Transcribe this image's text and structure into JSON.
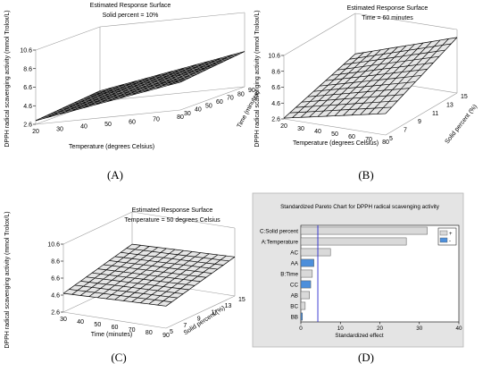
{
  "colors": {
    "surface_line": "#000000",
    "surface_fill": "#e6e6e6",
    "box_line": "#9a9a9a",
    "pareto_bg": "#e4e4e4",
    "bar_positive": "#d9d9d9",
    "bar_negative": "#4d8fdb",
    "ref_line": "#2b2bd0"
  },
  "chart_data": [
    {
      "type": "surface",
      "panel_label": "(A)",
      "title": "Estimated Response Surface",
      "subtitle": "Solid percent = 10%",
      "xlabel": "Temperature (degrees Celsius)",
      "ylabel": "Time (minutes)",
      "zlabel": "DPPH radical scavenging activity  (mmol Trolox/L)",
      "x_ticks": [
        "20",
        "30",
        "40",
        "50",
        "60",
        "70",
        "80"
      ],
      "y_ticks": [
        "30",
        "40",
        "50",
        "60",
        "70",
        "80",
        "90"
      ],
      "z_ticks": [
        "2.6",
        "4.6",
        "6.6",
        "8.6",
        "10.6"
      ],
      "xlim": [
        20,
        80
      ],
      "ylim": [
        30,
        90
      ],
      "zlim": [
        2.6,
        10.6
      ],
      "corner_z": {
        "xmin_ymin": 3.0,
        "xmax_ymin": 5.6,
        "xmin_ymax": 3.7,
        "xmax_ymax": 6.4
      }
    },
    {
      "type": "surface",
      "panel_label": "(B)",
      "title": "Estimated Response Surface",
      "subtitle": "Time = 60 minutes",
      "xlabel": "Temperature (degrees Celsius)",
      "ylabel": "Solid percent (%)",
      "zlabel": "DPPH radical scavenging activity  (mmol Trolox/L)",
      "x_ticks": [
        "20",
        "30",
        "40",
        "50",
        "60",
        "70",
        "80"
      ],
      "y_ticks": [
        "5",
        "7",
        "9",
        "11",
        "13",
        "15"
      ],
      "z_ticks": [
        "2.6",
        "4.6",
        "6.6",
        "8.6",
        "10.6"
      ],
      "xlim": [
        20,
        80
      ],
      "ylim": [
        5,
        15
      ],
      "zlim": [
        2.6,
        10.6
      ],
      "corner_z": {
        "xmin_ymin": 2.7,
        "xmax_ymin": 5.3,
        "xmin_ymax": 5.5,
        "xmax_ymax": 9.6
      }
    },
    {
      "type": "surface",
      "panel_label": "(C)",
      "title": "Estimated Response Surface",
      "subtitle": "Temperature = 50 degrees Celsius",
      "xlabel": "Time (minutes)",
      "ylabel": "Solid percent (%)",
      "zlabel": "DPPH radical scavenging activity  (mmol Trolox/L)",
      "x_ticks": [
        "30",
        "40",
        "50",
        "60",
        "70",
        "80",
        "90"
      ],
      "y_ticks": [
        "5",
        "7",
        "9",
        "11",
        "13",
        "15"
      ],
      "z_ticks": [
        "2.6",
        "4.6",
        "6.6",
        "8.6",
        "10.6"
      ],
      "xlim": [
        30,
        90
      ],
      "ylim": [
        5,
        15
      ],
      "zlim": [
        2.6,
        10.6
      ],
      "corner_z": {
        "xmin_ymin": 4.8,
        "xmax_ymin": 5.2,
        "xmin_ymax": 6.8,
        "xmax_ymax": 7.2
      }
    },
    {
      "type": "bar",
      "orientation": "horizontal",
      "panel_label": "(D)",
      "title": "Standardized Pareto Chart for DPPH radical scavenging activity",
      "xlabel": "Standardized effect",
      "x_ticks": [
        "0",
        "10",
        "20",
        "30",
        "40"
      ],
      "xlim": [
        0,
        40
      ],
      "reference_line": 4.3,
      "categories": [
        "C:Solid percent",
        "A:Temperature",
        "AC",
        "AA",
        "B:Time",
        "CC",
        "AB",
        "BC",
        "BB"
      ],
      "values": [
        32.0,
        26.7,
        7.5,
        3.3,
        2.9,
        2.5,
        2.2,
        1.1,
        0.4
      ],
      "signs": [
        "+",
        "+",
        "+",
        "-",
        "+",
        "-",
        "+",
        "+",
        "-"
      ],
      "legend": [
        "+",
        "-"
      ]
    }
  ]
}
